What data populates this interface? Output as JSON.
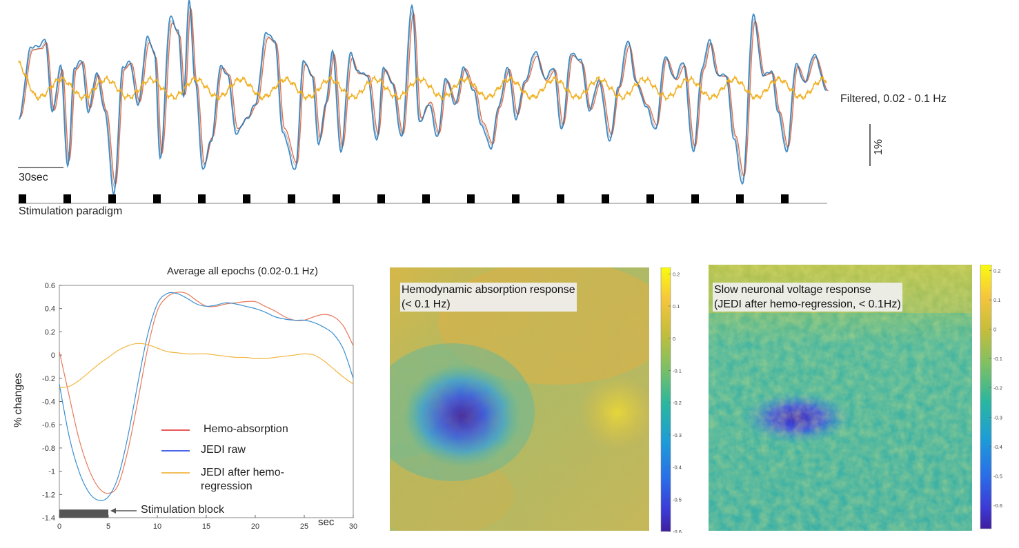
{
  "chart_data": [
    {
      "type": "line",
      "title": "Filtered, 0.02 - 0.1 Hz",
      "scale_bar_x": "30sec",
      "scale_bar_y": "1%",
      "stimulation_label": "Stimulation paradigm",
      "n_stim_blocks": 18,
      "series": [
        {
          "name": "Hemo-absorption",
          "color": "#e07050"
        },
        {
          "name": "JEDI raw",
          "color": "#2f7fc0"
        },
        {
          "name": "JEDI after hemo-regression",
          "color": "#f0b020"
        }
      ]
    },
    {
      "type": "line",
      "title": "Average all epochs (0.02-0.1 Hz)",
      "xlabel": "sec",
      "ylabel": "% changes",
      "xlim": [
        0,
        30
      ],
      "ylim": [
        -1.4,
        0.6
      ],
      "xticks": [
        "0",
        "5",
        "10",
        "15",
        "20",
        "25",
        "30"
      ],
      "yticks": [
        "0.6",
        "0.4",
        "0.2",
        "0",
        "-0.2",
        "-0.4",
        "-0.6",
        "-0.8",
        "-1",
        "-1.2",
        "-1.4"
      ],
      "stim_block": {
        "label": "Stimulation block",
        "start": 0,
        "end": 5
      },
      "series": [
        {
          "name": "Hemo-absorption",
          "color": "#e8795a",
          "x": [
            0,
            1,
            2,
            3,
            4,
            5,
            6,
            7,
            8,
            9,
            10,
            11,
            12,
            13,
            14,
            15,
            16,
            17,
            18,
            19,
            20,
            21,
            22,
            23,
            24,
            25,
            26,
            27,
            28,
            29,
            30
          ],
          "y": [
            0.03,
            -0.35,
            -0.72,
            -0.98,
            -1.14,
            -1.19,
            -1.12,
            -0.82,
            -0.4,
            0.05,
            0.38,
            0.5,
            0.54,
            0.53,
            0.47,
            0.42,
            0.42,
            0.44,
            0.45,
            0.46,
            0.46,
            0.42,
            0.38,
            0.33,
            0.3,
            0.3,
            0.33,
            0.35,
            0.33,
            0.25,
            0.08
          ]
        },
        {
          "name": "JEDI raw",
          "color": "#3a8fd0",
          "x": [
            0,
            1,
            2,
            3,
            4,
            5,
            6,
            7,
            8,
            9,
            10,
            11,
            12,
            13,
            14,
            15,
            16,
            17,
            18,
            19,
            20,
            21,
            22,
            23,
            24,
            25,
            26,
            27,
            28,
            29,
            30
          ],
          "y": [
            -0.25,
            -0.7,
            -1.0,
            -1.18,
            -1.25,
            -1.22,
            -1.05,
            -0.7,
            -0.25,
            0.17,
            0.44,
            0.53,
            0.53,
            0.49,
            0.44,
            0.42,
            0.43,
            0.45,
            0.44,
            0.42,
            0.4,
            0.37,
            0.33,
            0.31,
            0.3,
            0.3,
            0.28,
            0.24,
            0.18,
            0.05,
            -0.2
          ]
        },
        {
          "name": "JEDI after hemo-regression",
          "color": "#f2b640",
          "x": [
            0,
            1,
            2,
            3,
            4,
            5,
            6,
            7,
            8,
            9,
            10,
            11,
            12,
            13,
            14,
            15,
            16,
            17,
            18,
            19,
            20,
            21,
            22,
            23,
            24,
            25,
            26,
            27,
            28,
            29,
            30
          ],
          "y": [
            -0.28,
            -0.27,
            -0.22,
            -0.15,
            -0.08,
            -0.02,
            0.04,
            0.08,
            0.1,
            0.09,
            0.06,
            0.03,
            0.02,
            0.01,
            0.01,
            0.01,
            0.0,
            -0.01,
            -0.02,
            -0.02,
            -0.03,
            -0.03,
            -0.02,
            -0.01,
            0.0,
            0.01,
            0.0,
            -0.05,
            -0.12,
            -0.19,
            -0.25
          ]
        }
      ]
    },
    {
      "type": "heatmap",
      "title": "Hemodynamic absorption response",
      "subtitle": "(< 0.1 Hz)",
      "colorbar_ticks": [
        "0.2",
        "0.1",
        "0",
        "-0.1",
        "-0.2",
        "-0.3",
        "-0.4",
        "-0.5",
        "-0.6"
      ],
      "colorbar_range": [
        -0.6,
        0.22
      ]
    },
    {
      "type": "heatmap",
      "title": "Slow neuronal voltage response",
      "subtitle": "(JEDI after hemo-regression, < 0.1Hz)",
      "colorbar_ticks": [
        "0.2",
        "0.1",
        "0",
        "-0.1",
        "-0.2",
        "-0.3",
        "-0.4",
        "-0.5",
        "-0.6"
      ],
      "colorbar_range": [
        -0.68,
        0.22
      ]
    }
  ]
}
